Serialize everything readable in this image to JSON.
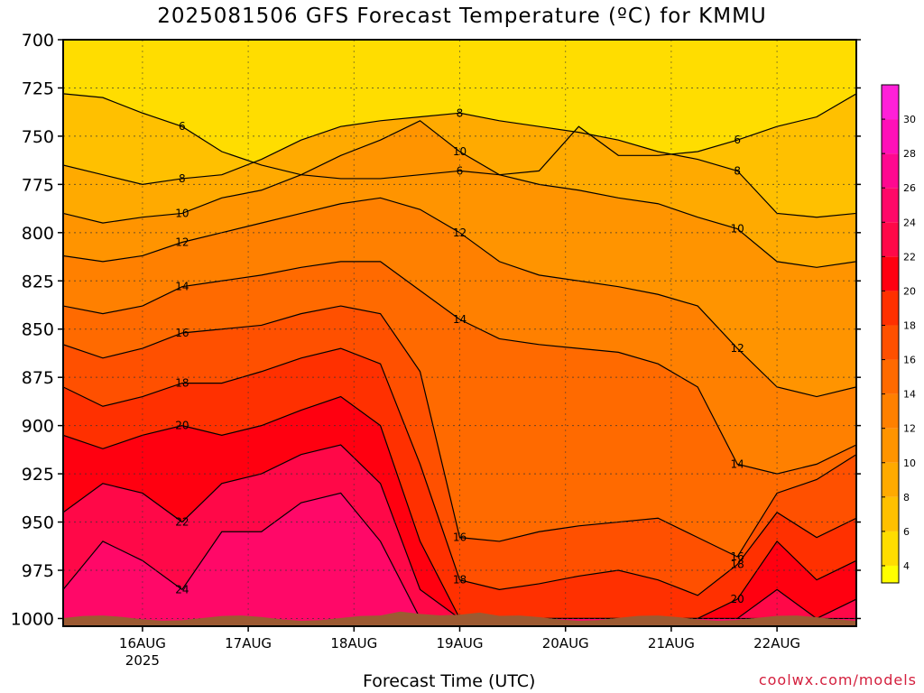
{
  "title": "2025081506 GFS Forecast Temperature (ºC) for KMMU",
  "xlabel": "Forecast Time (UTC)",
  "credit": "coolwx.com/models",
  "chart_data": {
    "type": "contour",
    "title": "2025081506 GFS Forecast Temperature (ºC) for KMMU",
    "xlabel": "Forecast Time (UTC)",
    "ylabel": "",
    "y_axis": {
      "ticks": [
        "700",
        "725",
        "750",
        "775",
        "800",
        "825",
        "850",
        "875",
        "900",
        "925",
        "950",
        "975",
        "1000"
      ],
      "values": [
        700,
        725,
        750,
        775,
        800,
        825,
        850,
        875,
        900,
        925,
        950,
        975,
        1000
      ],
      "ylim": [
        700,
        1004
      ],
      "inverted": true
    },
    "x_axis": {
      "ticks": [
        "16AUG",
        "17AUG",
        "18AUG",
        "19AUG",
        "20AUG",
        "21AUG",
        "22AUG"
      ],
      "values": [
        1,
        2,
        3,
        4,
        5,
        6,
        7
      ],
      "year_label": "2025",
      "xlim": [
        0.25,
        7.75
      ]
    },
    "grid": true,
    "colorbar": {
      "labels": [
        "4",
        "6",
        "8",
        "10",
        "12",
        "14",
        "16",
        "18",
        "20",
        "22",
        "24",
        "26",
        "28",
        "30"
      ],
      "values": [
        4,
        6,
        8,
        10,
        12,
        14,
        16,
        18,
        20,
        22,
        24,
        26,
        28,
        30
      ],
      "min": 3,
      "max": 32,
      "colors": [
        "#ffff00",
        "#ffdd00",
        "#ffc000",
        "#ffaa00",
        "#ff9400",
        "#ff8000",
        "#ff6a00",
        "#ff5000",
        "#ff3000",
        "#ff0010",
        "#ff0848",
        "#ff0868",
        "#ff0890",
        "#ff10b8",
        "#ff20d8"
      ]
    },
    "isotherms": [
      {
        "label": "6",
        "values": [
          728,
          730,
          738,
          745,
          758,
          765,
          770,
          772,
          772,
          770,
          768,
          770,
          768,
          745,
          760,
          760,
          758,
          752,
          745,
          740,
          728
        ]
      },
      {
        "label": "8",
        "values": [
          765,
          770,
          775,
          772,
          770,
          762,
          752,
          745,
          742,
          740,
          738,
          742,
          745,
          748,
          752,
          758,
          762,
          768,
          790,
          792,
          790
        ]
      },
      {
        "label": "10",
        "values": [
          790,
          795,
          792,
          790,
          782,
          778,
          770,
          760,
          752,
          742,
          758,
          770,
          775,
          778,
          782,
          785,
          792,
          798,
          815,
          818,
          815
        ]
      },
      {
        "label": "12",
        "values": [
          812,
          815,
          812,
          805,
          800,
          795,
          790,
          785,
          782,
          788,
          800,
          815,
          822,
          825,
          828,
          832,
          838,
          860,
          880,
          885,
          880
        ]
      },
      {
        "label": "14",
        "values": [
          838,
          842,
          838,
          828,
          825,
          822,
          818,
          815,
          815,
          830,
          845,
          855,
          858,
          860,
          862,
          868,
          880,
          920,
          925,
          920,
          910
        ]
      },
      {
        "label": "16",
        "values": [
          858,
          865,
          860,
          852,
          850,
          848,
          842,
          838,
          842,
          872,
          958,
          960,
          955,
          952,
          950,
          948,
          958,
          968,
          935,
          928,
          915
        ]
      },
      {
        "label": "18",
        "values": [
          880,
          890,
          885,
          878,
          878,
          872,
          865,
          860,
          868,
          920,
          980,
          985,
          982,
          978,
          975,
          980,
          988,
          972,
          945,
          958,
          948
        ]
      },
      {
        "label": "20",
        "values": [
          905,
          912,
          905,
          900,
          905,
          900,
          892,
          885,
          900,
          960,
          1000,
          1000,
          1000,
          1000,
          1000,
          1000,
          1000,
          990,
          960,
          980,
          970
        ]
      },
      {
        "label": "22",
        "values": [
          945,
          930,
          935,
          950,
          930,
          925,
          915,
          910,
          930,
          985,
          1000,
          1000,
          1000,
          1000,
          1000,
          1000,
          1000,
          1000,
          985,
          1000,
          990
        ]
      },
      {
        "label": "24",
        "values": [
          985,
          960,
          970,
          985,
          955,
          955,
          940,
          935,
          960,
          1000,
          1000,
          1000,
          1000,
          1000,
          1000,
          1000,
          1000,
          1000,
          1000,
          1000,
          1000
        ]
      }
    ]
  }
}
